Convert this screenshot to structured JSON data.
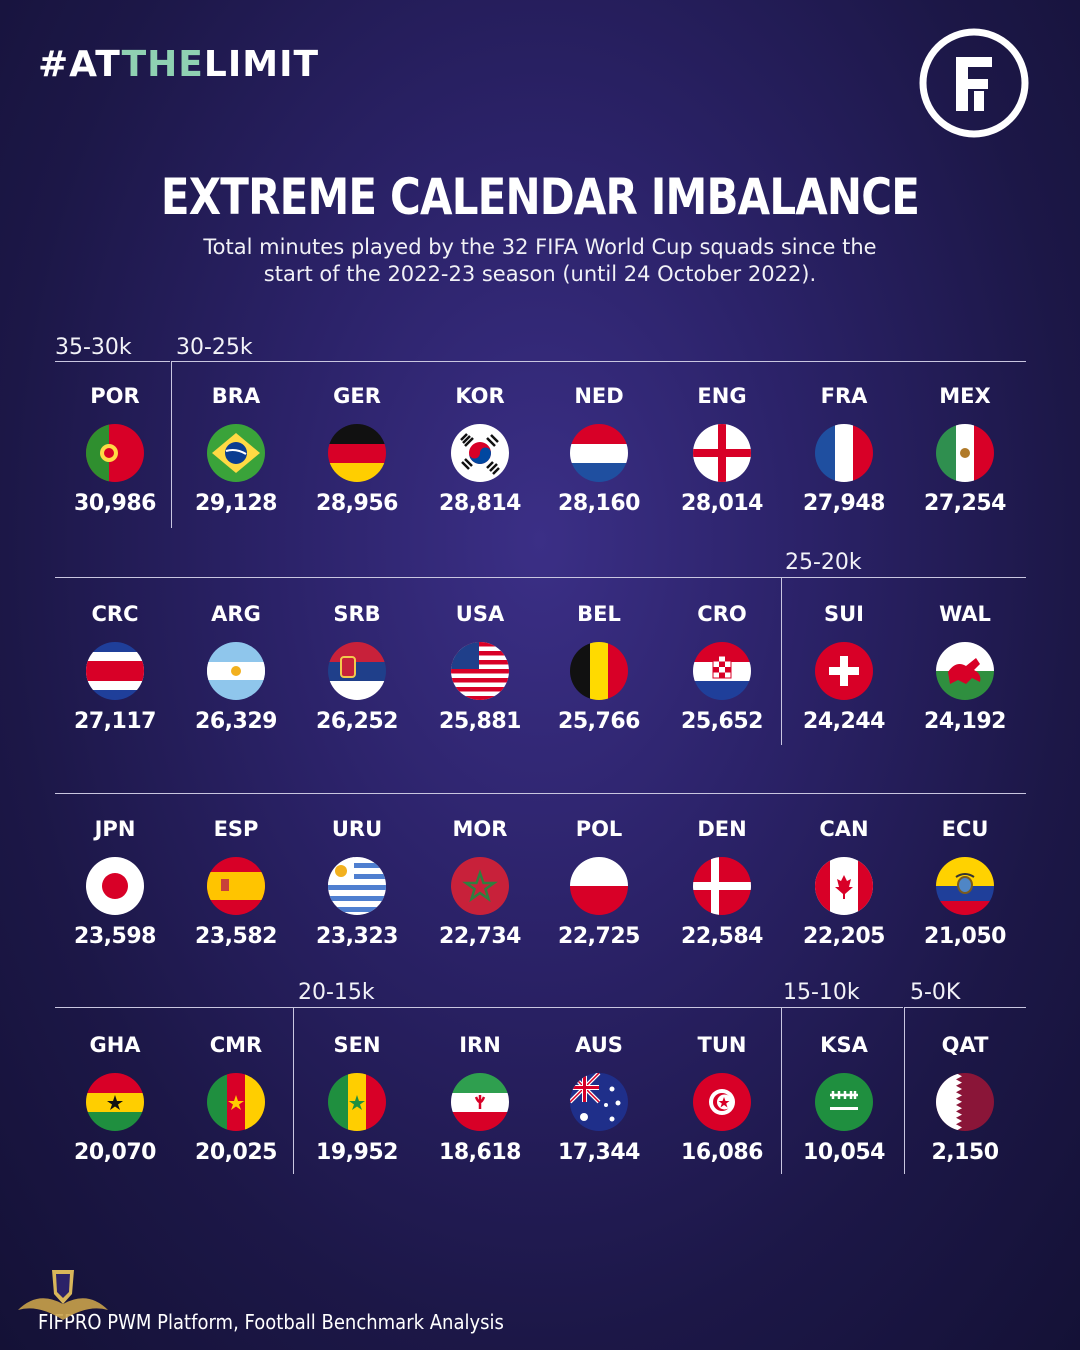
{
  "header": {
    "hashtag_pre": "#AT",
    "hashtag_hl": "THE",
    "hashtag_post": "LIMIT",
    "logo_letter": "F"
  },
  "title": "EXTREME CALENDAR IMBALANCE",
  "subtitle_line1": "Total minutes played by the 32 FIFA World Cup squads since the",
  "subtitle_line2": "start of the 2022-23 season (until 24 October 2022).",
  "groups": [
    "35-30k",
    "30-25k",
    "25-20k",
    "20-15k",
    "15-10k",
    "5-0K"
  ],
  "teams": [
    {
      "code": "POR",
      "value": "30,986",
      "flag": "por-flag-icon"
    },
    {
      "code": "BRA",
      "value": "29,128",
      "flag": "bra-flag-icon"
    },
    {
      "code": "GER",
      "value": "28,956",
      "flag": "ger-flag-icon"
    },
    {
      "code": "KOR",
      "value": "28,814",
      "flag": "kor-flag-icon"
    },
    {
      "code": "NED",
      "value": "28,160",
      "flag": "ned-flag-icon"
    },
    {
      "code": "ENG",
      "value": "28,014",
      "flag": "eng-flag-icon"
    },
    {
      "code": "FRA",
      "value": "27,948",
      "flag": "fra-flag-icon"
    },
    {
      "code": "MEX",
      "value": "27,254",
      "flag": "mex-flag-icon"
    },
    {
      "code": "CRC",
      "value": "27,117",
      "flag": "crc-flag-icon"
    },
    {
      "code": "ARG",
      "value": "26,329",
      "flag": "arg-flag-icon"
    },
    {
      "code": "SRB",
      "value": "26,252",
      "flag": "srb-flag-icon"
    },
    {
      "code": "USA",
      "value": "25,881",
      "flag": "usa-flag-icon"
    },
    {
      "code": "BEL",
      "value": "25,766",
      "flag": "bel-flag-icon"
    },
    {
      "code": "CRO",
      "value": "25,652",
      "flag": "cro-flag-icon"
    },
    {
      "code": "SUI",
      "value": "24,244",
      "flag": "sui-flag-icon"
    },
    {
      "code": "WAL",
      "value": "24,192",
      "flag": "wal-flag-icon"
    },
    {
      "code": "JPN",
      "value": "23,598",
      "flag": "jpn-flag-icon"
    },
    {
      "code": "ESP",
      "value": "23,582",
      "flag": "esp-flag-icon"
    },
    {
      "code": "URU",
      "value": "23,323",
      "flag": "uru-flag-icon"
    },
    {
      "code": "MOR",
      "value": "22,734",
      "flag": "mor-flag-icon"
    },
    {
      "code": "POL",
      "value": "22,725",
      "flag": "pol-flag-icon"
    },
    {
      "code": "DEN",
      "value": "22,584",
      "flag": "den-flag-icon"
    },
    {
      "code": "CAN",
      "value": "22,205",
      "flag": "can-flag-icon"
    },
    {
      "code": "ECU",
      "value": "21,050",
      "flag": "ecu-flag-icon"
    },
    {
      "code": "GHA",
      "value": "20,070",
      "flag": "gha-flag-icon"
    },
    {
      "code": "CMR",
      "value": "20,025",
      "flag": "cmr-flag-icon"
    },
    {
      "code": "SEN",
      "value": "19,952",
      "flag": "sen-flag-icon"
    },
    {
      "code": "IRN",
      "value": "18,618",
      "flag": "irn-flag-icon"
    },
    {
      "code": "AUS",
      "value": "17,344",
      "flag": "aus-flag-icon"
    },
    {
      "code": "TUN",
      "value": "16,086",
      "flag": "tun-flag-icon"
    },
    {
      "code": "KSA",
      "value": "10,054",
      "flag": "ksa-flag-icon"
    },
    {
      "code": "QAT",
      "value": "2,150",
      "flag": "qat-flag-icon"
    }
  ],
  "source": "FIFPRO PWM Platform, Football Benchmark Analysis"
}
